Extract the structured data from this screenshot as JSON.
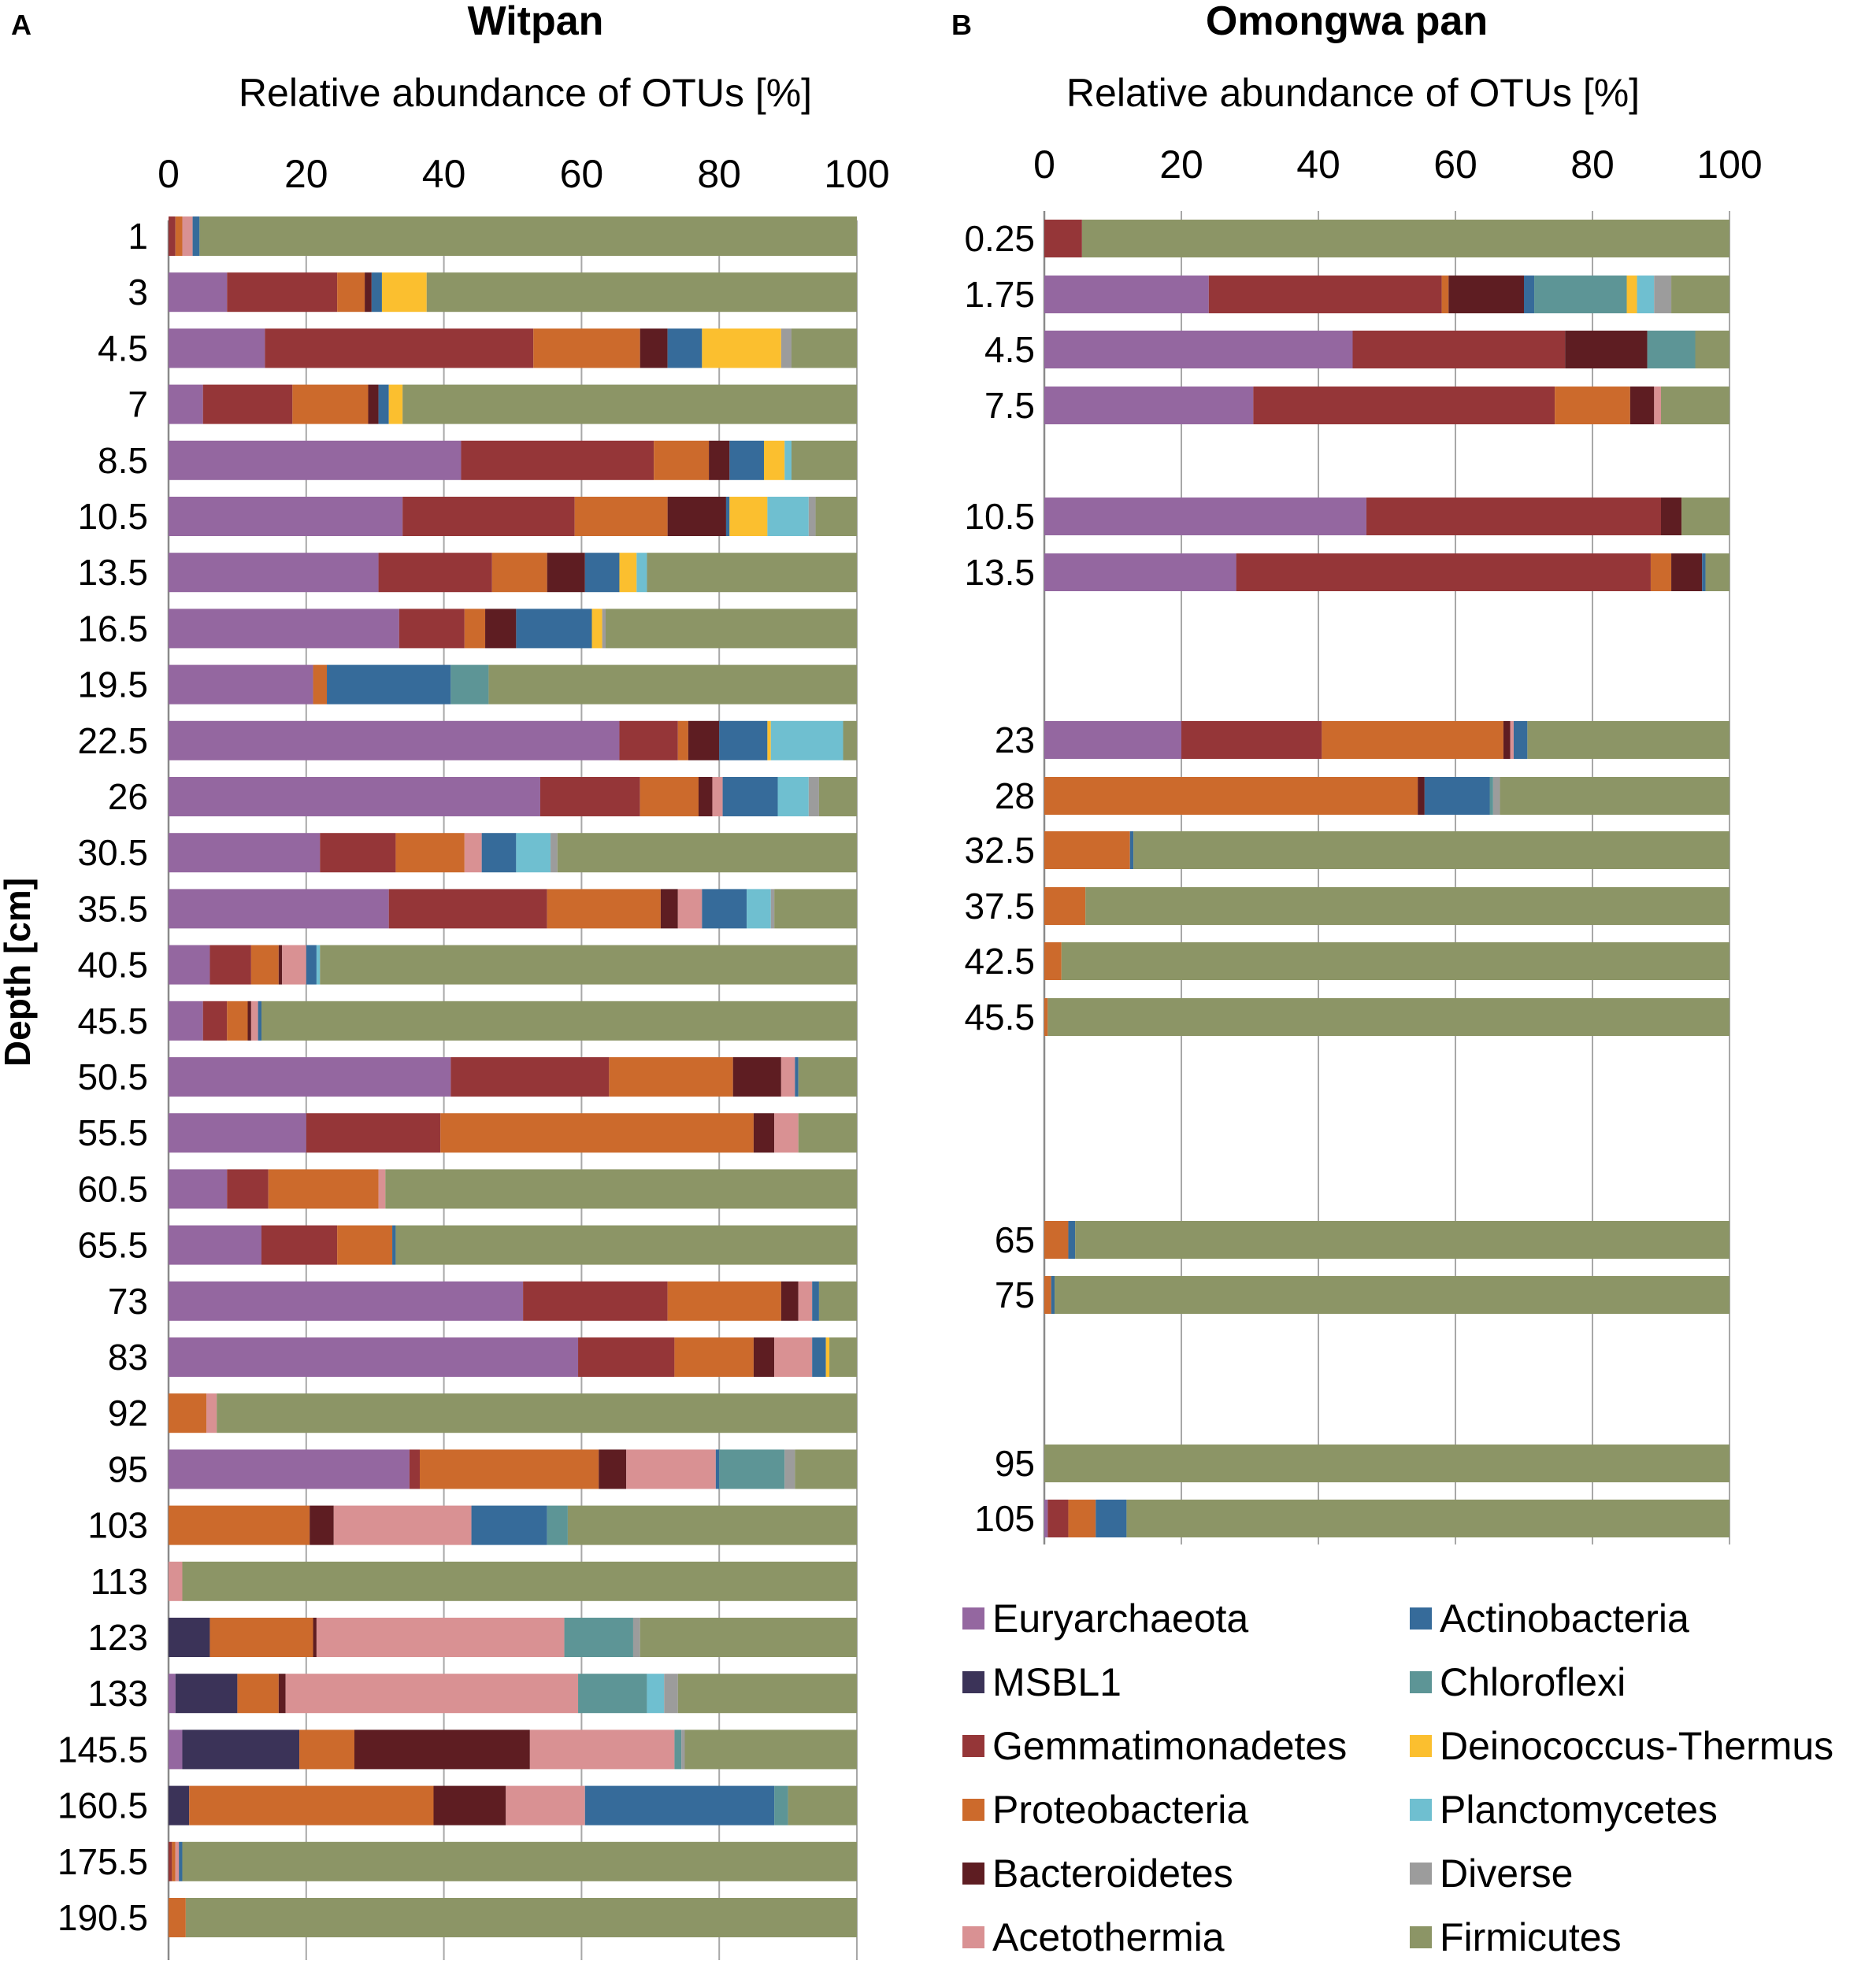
{
  "colors": {
    "Euryarchaeota": "#9467a0",
    "MSBL1": "#3b3358",
    "Gemmatimonadetes": "#953638",
    "Proteobacteria": "#cc6a2c",
    "Bacteroidetes": "#5e1d22",
    "Acetothermia": "#d99193",
    "Actinobacteria": "#366b9a",
    "Chloroflexi": "#5d9596",
    "Deinococcus-Thermus": "#fbbf2f",
    "Planctomycetes": "#6fbfd0",
    "Diverse": "#9c9c9c",
    "Firmicutes": "#8c9566"
  },
  "legend": {
    "items": [
      "Euryarchaeota",
      "Actinobacteria",
      "MSBL1",
      "Chloroflexi",
      "Gemmatimonadetes",
      "Deinococcus-Thermus",
      "Proteobacteria",
      "Planctomycetes",
      "Bacteroidetes",
      "Diverse",
      "Acetothermia",
      "Firmicutes"
    ]
  },
  "ylabel": "Depth [cm]",
  "chart_data": [
    {
      "type": "bar",
      "orientation": "horizontal-stacked",
      "panel": "A",
      "title": "Witpan",
      "xlabel": "Relative abundance of OTUs [%]",
      "xlim": [
        0,
        100
      ],
      "xticks": [
        "0",
        "20",
        "40",
        "60",
        "80",
        "100"
      ],
      "ylabel": "Depth [cm]",
      "taxa": [
        "Euryarchaeota",
        "MSBL1",
        "Gemmatimonadetes",
        "Proteobacteria",
        "Bacteroidetes",
        "Acetothermia",
        "Actinobacteria",
        "Chloroflexi",
        "Deinococcus-Thermus",
        "Planctomycetes",
        "Diverse",
        "Firmicutes"
      ],
      "rows": [
        {
          "depth": "1",
          "values": [
            0,
            0,
            1,
            1,
            0,
            1.5,
            1,
            0,
            0,
            0,
            0,
            95.5
          ]
        },
        {
          "depth": "3",
          "values": [
            8.5,
            0,
            16,
            4,
            1,
            0,
            1.5,
            0,
            6.5,
            0,
            0,
            62.5
          ]
        },
        {
          "depth": "4.5",
          "values": [
            14,
            0,
            39,
            15.5,
            4,
            0,
            5,
            0,
            11.5,
            0,
            1.5,
            9.5
          ]
        },
        {
          "depth": "7",
          "values": [
            5,
            0,
            13,
            11,
            1.5,
            0,
            1.5,
            0,
            2,
            0,
            0,
            66
          ]
        },
        {
          "depth": "8.5",
          "values": [
            42.5,
            0,
            28,
            8,
            3,
            0,
            5,
            0,
            3,
            1,
            0,
            9.5
          ]
        },
        {
          "depth": "10.5",
          "values": [
            34,
            0,
            25,
            13.5,
            8.5,
            0,
            0.5,
            0,
            5.5,
            6,
            1,
            6
          ]
        },
        {
          "depth": "13.5",
          "values": [
            30.5,
            0,
            16.5,
            8,
            5.5,
            0,
            5,
            0,
            2.5,
            1.5,
            0,
            30.5
          ]
        },
        {
          "depth": "16.5",
          "values": [
            33.5,
            0,
            9.5,
            3,
            4.5,
            0,
            11,
            0,
            1.5,
            0,
            0.5,
            36.5
          ]
        },
        {
          "depth": "19.5",
          "values": [
            21,
            0,
            0,
            2,
            0,
            0,
            18,
            5.5,
            0,
            0,
            0,
            53.5
          ]
        },
        {
          "depth": "22.5",
          "values": [
            65.5,
            0,
            8.5,
            1.5,
            4.5,
            0,
            7,
            0,
            0.5,
            10.5,
            0,
            2
          ]
        },
        {
          "depth": "26",
          "values": [
            54,
            0,
            14.5,
            8.5,
            2,
            1.5,
            8,
            0,
            0,
            4.5,
            1.5,
            5.5
          ]
        },
        {
          "depth": "30.5",
          "values": [
            22,
            0,
            11,
            10,
            0,
            2.5,
            5,
            0,
            0,
            5,
            1,
            43.5
          ]
        },
        {
          "depth": "35.5",
          "values": [
            32,
            0,
            23,
            16.5,
            2.5,
            3.5,
            6.5,
            0,
            0,
            3.5,
            0.5,
            12
          ]
        },
        {
          "depth": "40.5",
          "values": [
            6,
            0,
            6,
            4,
            0.5,
            3.5,
            1.5,
            0,
            0,
            0.5,
            0,
            78
          ]
        },
        {
          "depth": "45.5",
          "values": [
            5,
            0,
            3.5,
            3,
            0.5,
            1,
            0.5,
            0,
            0,
            0,
            0,
            86.5
          ]
        },
        {
          "depth": "50.5",
          "values": [
            41,
            0,
            23,
            18,
            7,
            2,
            0.5,
            0,
            0,
            0,
            0,
            8.5
          ]
        },
        {
          "depth": "55.5",
          "values": [
            20,
            0,
            19.5,
            45.5,
            3,
            3.5,
            0,
            0,
            0,
            0,
            0,
            8.5
          ]
        },
        {
          "depth": "60.5",
          "values": [
            8.5,
            0,
            6,
            16,
            0,
            1,
            0,
            0,
            0,
            0,
            0,
            68.5
          ]
        },
        {
          "depth": "65.5",
          "values": [
            13.5,
            0,
            11,
            8,
            0,
            0,
            0.5,
            0,
            0,
            0,
            0,
            67
          ]
        },
        {
          "depth": "73",
          "values": [
            51.5,
            0,
            21,
            16.5,
            2.5,
            2,
            1,
            0,
            0,
            0,
            0,
            5.5
          ]
        },
        {
          "depth": "83",
          "values": [
            59.5,
            0,
            14,
            11.5,
            3,
            5.5,
            2,
            0,
            0.5,
            0,
            0,
            4
          ]
        },
        {
          "depth": "92",
          "values": [
            0,
            0,
            0,
            5.5,
            0,
            1.5,
            0,
            0,
            0,
            0,
            0,
            93
          ]
        },
        {
          "depth": "95",
          "values": [
            35,
            0,
            1.5,
            26,
            4,
            13,
            0.5,
            9.5,
            0,
            0,
            1.5,
            9
          ]
        },
        {
          "depth": "103",
          "values": [
            0,
            0,
            0,
            20.5,
            3.5,
            20,
            11,
            3,
            0,
            0,
            0,
            42
          ]
        },
        {
          "depth": "113",
          "values": [
            0,
            0,
            0,
            0,
            0,
            2,
            0,
            0,
            0,
            0,
            0,
            98
          ]
        },
        {
          "depth": "123",
          "values": [
            0,
            6,
            0,
            15,
            0.5,
            36,
            0,
            10,
            0,
            0,
            1,
            31.5
          ]
        },
        {
          "depth": "133",
          "values": [
            1,
            9,
            0,
            6,
            1,
            42.5,
            0,
            10,
            0,
            2.5,
            2,
            26
          ]
        },
        {
          "depth": "145.5",
          "values": [
            2,
            17,
            0,
            8,
            25.5,
            21,
            0,
            1,
            0,
            0,
            0.5,
            25
          ]
        },
        {
          "depth": "160.5",
          "values": [
            0,
            3,
            0,
            35.5,
            10.5,
            11.5,
            27.5,
            2,
            0,
            0,
            0,
            10
          ]
        },
        {
          "depth": "175.5",
          "values": [
            0,
            0,
            0.5,
            0.5,
            0,
            0.5,
            0.5,
            0,
            0,
            0,
            0,
            98
          ]
        },
        {
          "depth": "190.5",
          "values": [
            0,
            0,
            0,
            2.5,
            0,
            0,
            0,
            0,
            0,
            0,
            0,
            97.5
          ]
        }
      ]
    },
    {
      "type": "bar",
      "orientation": "horizontal-stacked",
      "panel": "B",
      "title": "Omongwa pan",
      "xlabel": "Relative abundance of OTUs [%]",
      "xlim": [
        0,
        100
      ],
      "xticks": [
        "0",
        "20",
        "40",
        "60",
        "80",
        "100"
      ],
      "ylabel": "Depth [cm]",
      "taxa": [
        "Euryarchaeota",
        "MSBL1",
        "Gemmatimonadetes",
        "Proteobacteria",
        "Bacteroidetes",
        "Acetothermia",
        "Actinobacteria",
        "Chloroflexi",
        "Deinococcus-Thermus",
        "Planctomycetes",
        "Diverse",
        "Firmicutes"
      ],
      "rows": [
        {
          "depth": "0.25",
          "values": [
            0,
            0,
            5.5,
            0,
            0,
            0,
            0,
            0,
            0,
            0,
            0,
            94.5
          ]
        },
        {
          "depth": "1.75",
          "values": [
            24,
            0,
            34,
            1,
            11,
            0,
            1.5,
            13.5,
            1.5,
            2.5,
            2.5,
            8.5
          ]
        },
        {
          "depth": "4.5",
          "values": [
            45,
            0,
            31,
            0,
            12,
            0,
            0,
            7,
            0,
            0,
            0,
            5
          ]
        },
        {
          "depth": "7.5",
          "values": [
            30.5,
            0,
            44,
            11,
            3.5,
            1,
            0,
            0,
            0,
            0,
            0,
            10
          ]
        },
        {
          "depth": "10.5",
          "values": [
            47,
            0,
            43,
            0,
            3,
            0,
            0,
            0,
            0,
            0,
            0,
            7
          ]
        },
        {
          "depth": "13.5",
          "values": [
            28,
            0,
            60.5,
            3,
            4.5,
            0,
            0.5,
            0,
            0,
            0,
            0,
            3.5
          ]
        },
        {
          "depth": "23",
          "values": [
            20,
            0,
            20.5,
            26.5,
            1,
            0.5,
            2,
            0,
            0,
            0,
            0,
            29.5
          ]
        },
        {
          "depth": "28",
          "values": [
            0,
            0,
            0,
            54.5,
            1,
            0,
            9.5,
            0.5,
            0,
            0,
            1,
            33.5
          ]
        },
        {
          "depth": "32.5",
          "values": [
            0,
            0,
            0,
            12.5,
            0,
            0,
            0.5,
            0,
            0,
            0,
            0,
            87
          ]
        },
        {
          "depth": "37.5",
          "values": [
            0,
            0,
            0,
            6,
            0,
            0,
            0,
            0,
            0,
            0,
            0,
            94
          ]
        },
        {
          "depth": "42.5",
          "values": [
            0,
            0,
            0,
            2.5,
            0,
            0,
            0,
            0,
            0,
            0,
            0,
            97.5
          ]
        },
        {
          "depth": "45.5",
          "values": [
            0,
            0,
            0,
            0.5,
            0,
            0,
            0,
            0,
            0,
            0,
            0,
            99.5
          ]
        },
        {
          "depth": "65",
          "values": [
            0,
            0,
            0,
            3.5,
            0,
            0,
            1,
            0,
            0,
            0,
            0,
            95.5
          ]
        },
        {
          "depth": "75",
          "values": [
            0,
            0,
            0,
            1,
            0,
            0,
            0.5,
            0,
            0,
            0,
            0,
            98.5
          ]
        },
        {
          "depth": "95",
          "values": [
            0,
            0,
            0,
            0,
            0,
            0,
            0,
            0,
            0,
            0,
            0,
            100
          ]
        },
        {
          "depth": "105",
          "values": [
            0.5,
            0,
            3,
            4,
            0,
            0,
            4.5,
            0,
            0,
            0,
            0,
            88
          ]
        }
      ]
    }
  ]
}
